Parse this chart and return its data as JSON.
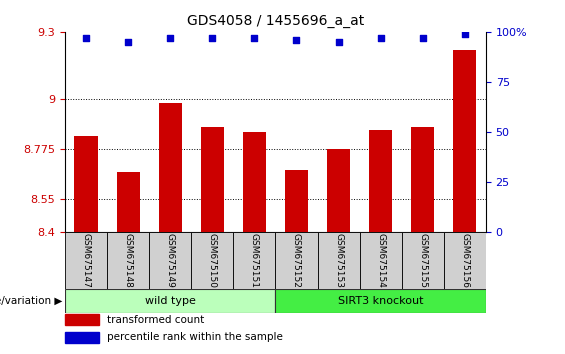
{
  "title": "GDS4058 / 1455696_a_at",
  "samples": [
    "GSM675147",
    "GSM675148",
    "GSM675149",
    "GSM675150",
    "GSM675151",
    "GSM675152",
    "GSM675153",
    "GSM675154",
    "GSM675155",
    "GSM675156"
  ],
  "transformed_count": [
    8.83,
    8.67,
    8.98,
    8.87,
    8.85,
    8.68,
    8.775,
    8.86,
    8.87,
    9.22
  ],
  "percentile_rank": [
    97,
    95,
    97,
    97,
    97,
    96,
    95,
    97,
    97,
    99
  ],
  "groups": [
    {
      "label": "wild type",
      "indices": [
        0,
        1,
        2,
        3,
        4
      ],
      "color": "#bbffbb"
    },
    {
      "label": "SIRT3 knockout",
      "indices": [
        5,
        6,
        7,
        8,
        9
      ],
      "color": "#44ee44"
    }
  ],
  "ylim": [
    8.4,
    9.3
  ],
  "yticks": [
    8.4,
    8.55,
    8.775,
    9.0,
    9.3
  ],
  "ytick_labels": [
    "8.4",
    "8.55",
    "8.775",
    "9",
    "9.3"
  ],
  "right_ytick_pcts": [
    0,
    25,
    50,
    75,
    100
  ],
  "right_ytick_labels": [
    "0",
    "25",
    "50",
    "75",
    "100%"
  ],
  "hlines": [
    8.55,
    8.775,
    9.0
  ],
  "bar_color": "#cc0000",
  "dot_color": "#0000cc",
  "left_tick_color": "#cc0000",
  "right_tick_color": "#0000cc",
  "legend_items": [
    {
      "color": "#cc0000",
      "label": "transformed count"
    },
    {
      "color": "#0000cc",
      "label": "percentile rank within the sample"
    }
  ],
  "genotype_label": "genotype/variation",
  "bar_width": 0.55,
  "sample_box_color": "#d0d0d0"
}
